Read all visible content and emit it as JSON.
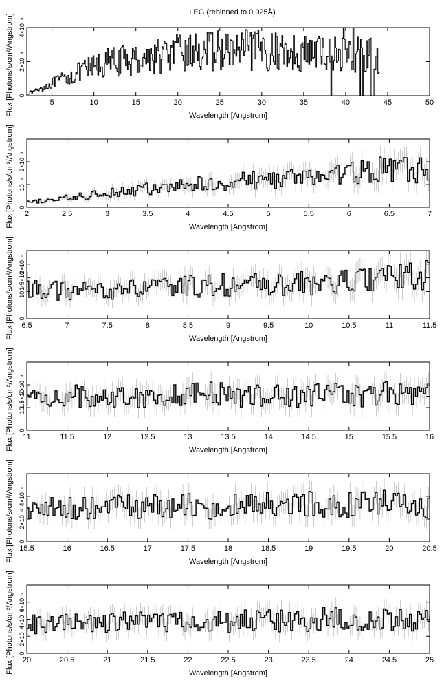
{
  "title": "LEG (rebinned to 0.025Å)",
  "chart_data": [
    {
      "type": "line",
      "xlabel": "Wavelength [Angstrom]",
      "ylabel": "Flux [Photons/s/cm²/Angstrom]",
      "xlim": [
        2,
        50
      ],
      "ylim": [
        0,
        0.0004
      ],
      "xticks": [
        5,
        10,
        15,
        20,
        25,
        30,
        35,
        40,
        45,
        50
      ],
      "xtick_labels": [
        "5",
        "10",
        "15",
        "20",
        "25",
        "30",
        "35",
        "40",
        "45",
        "50"
      ],
      "yticks": [
        0,
        0.0002,
        0.0004
      ],
      "ytick_labels": [
        "0",
        "2×10⁻⁴",
        "4×10⁻⁴"
      ],
      "series": [
        {
          "color": "#000000",
          "x": [
            2,
            3,
            4,
            5,
            6,
            7,
            8,
            9,
            10,
            11,
            12,
            13,
            14,
            15,
            16,
            17,
            18,
            19,
            20,
            21,
            22,
            23,
            24,
            25,
            26,
            27,
            28,
            29,
            30,
            31,
            32,
            33,
            34,
            35,
            36,
            37,
            38,
            39,
            40,
            41,
            42,
            43,
            44
          ],
          "y": [
            1e-05,
            3e-05,
            5e-05,
            7e-05,
            9e-05,
            0.00011,
            0.00013,
            0.00015,
            0.00017,
            0.00018,
            0.0002,
            0.0002,
            0.00021,
            0.00021,
            0.00022,
            0.00023,
            0.00024,
            0.00024,
            0.00025,
            0.00025,
            0.00026,
            0.00026,
            0.00026,
            0.00027,
            0.00026,
            0.00026,
            0.00027,
            0.00026,
            0.00027,
            0.00026,
            0.00026,
            0.00026,
            0.00025,
            0.00025,
            0.00025,
            0.00025,
            0.00025,
            0.00024,
            0.00024,
            0.00024,
            0.00024,
            0.00024,
            0.00023
          ]
        }
      ]
    },
    {
      "type": "line",
      "xlabel": "Wavelength [Angstrom]",
      "ylabel": "Flux [Photons/s/cm²/Angstrom]",
      "xlim": [
        2,
        7
      ],
      "ylim": [
        0,
        0.0003
      ],
      "xticks": [
        2,
        2.5,
        3,
        3.5,
        4,
        4.5,
        5,
        5.5,
        6,
        6.5,
        7
      ],
      "xtick_labels": [
        "2",
        "2.5",
        "3",
        "3.5",
        "4",
        "4.5",
        "5",
        "5.5",
        "6",
        "6.5",
        "7"
      ],
      "yticks": [
        0,
        0.0001,
        0.0002
      ],
      "ytick_labels": [
        "0",
        "10⁻⁴",
        "2×10⁻⁴"
      ],
      "series": [
        {
          "color": "#000000",
          "x": [
            2,
            2.25,
            2.5,
            2.75,
            3,
            3.25,
            3.5,
            3.75,
            4,
            4.25,
            4.5,
            4.75,
            5,
            5.25,
            5.5,
            5.75,
            6,
            6.25,
            6.5,
            6.75,
            7
          ],
          "y": [
            2e-05,
            3e-05,
            4e-05,
            5e-05,
            7e-05,
            7e-05,
            8e-05,
            8e-05,
            0.0001,
            0.0001,
            0.00011,
            0.00012,
            0.00012,
            0.00013,
            0.00013,
            0.00014,
            0.00015,
            0.00016,
            0.00017,
            0.00016,
            0.00017
          ]
        }
      ]
    },
    {
      "type": "line",
      "xlabel": "Wavelength [Angstrom]",
      "ylabel": "Flux [Photons/s/cm²/Angstrom]",
      "xlim": [
        6.5,
        11.5
      ],
      "ylim": [
        0,
        0.00025
      ],
      "xticks": [
        6.5,
        7,
        7.5,
        8,
        8.5,
        9,
        9.5,
        10,
        10.5,
        11,
        11.5
      ],
      "xtick_labels": [
        "6.5",
        "7",
        "7.5",
        "8",
        "8.5",
        "9",
        "9.5",
        "10",
        "10.5",
        "11",
        "11.5"
      ],
      "yticks": [
        0,
        0.0001,
        0.00015,
        0.0002
      ],
      "ytick_labels": [
        "0",
        "10⁻⁴",
        "1.5×10⁻⁴",
        "2×10⁻⁴"
      ],
      "series": [
        {
          "color": "#000000",
          "x": [
            6.5,
            6.75,
            7,
            7.25,
            7.5,
            7.75,
            8,
            8.25,
            8.5,
            8.75,
            9,
            9.25,
            9.5,
            9.75,
            10,
            10.25,
            10.5,
            10.75,
            11,
            11.25,
            11.5
          ],
          "y": [
            0.000115,
            0.000105,
            0.0001,
            0.0001,
            0.000105,
            0.00011,
            0.00011,
            0.000115,
            0.00012,
            0.00012,
            0.000125,
            0.000125,
            0.00012,
            0.000125,
            0.00013,
            0.00013,
            0.000135,
            0.000145,
            0.00015,
            0.000155,
            0.00016
          ]
        }
      ]
    },
    {
      "type": "line",
      "xlabel": "Wavelength [Angstrom]",
      "ylabel": "Flux [Photons/s/cm²/Angstrom]",
      "xlim": [
        11,
        16
      ],
      "ylim": [
        0,
        0.0003
      ],
      "xticks": [
        11,
        11.5,
        12,
        12.5,
        13,
        13.5,
        14,
        14.5,
        15,
        15.5,
        16
      ],
      "xtick_labels": [
        "11",
        "11.5",
        "12",
        "12.5",
        "13",
        "13.5",
        "14",
        "14.5",
        "15",
        "15.5",
        "16"
      ],
      "yticks": [
        0,
        0.0001,
        0.00015,
        0.0002
      ],
      "ytick_labels": [
        "0",
        "10⁻⁴",
        "1.5×10⁻⁴",
        "2×10⁻⁴"
      ],
      "series": [
        {
          "color": "#000000",
          "x": [
            11,
            11.25,
            11.5,
            11.75,
            12,
            12.25,
            12.5,
            12.75,
            13,
            13.25,
            13.5,
            13.75,
            14,
            14.25,
            14.5,
            14.75,
            15,
            15.25,
            15.5,
            15.75,
            16
          ],
          "y": [
            0.00014,
            0.000145,
            0.00015,
            0.00015,
            0.00015,
            0.00015,
            0.000155,
            0.00015,
            0.00016,
            0.00016,
            0.000155,
            0.000155,
            0.000155,
            0.00015,
            0.000155,
            0.00016,
            0.000155,
            0.00016,
            0.000165,
            0.00016,
            0.00016
          ]
        }
      ]
    },
    {
      "type": "line",
      "xlabel": "Wavelength [Angstrom]",
      "ylabel": "Flux [Photons/s/cm²/Angstrom]",
      "xlim": [
        15.5,
        20.5
      ],
      "ylim": [
        0,
        0.0006
      ],
      "xticks": [
        15.5,
        16,
        16.5,
        17,
        17.5,
        18,
        18.5,
        19,
        19.5,
        20,
        20.5
      ],
      "xtick_labels": [
        "15.5",
        "16",
        "16.5",
        "17",
        "17.5",
        "18",
        "18.5",
        "19",
        "19.5",
        "20",
        "20.5"
      ],
      "yticks": [
        0,
        0.0002,
        0.0004
      ],
      "ytick_labels": [
        "0",
        "2×10⁻⁴",
        "4×10⁻⁴"
      ],
      "series": [
        {
          "color": "#000000",
          "x": [
            15.5,
            15.75,
            16,
            16.25,
            16.5,
            16.75,
            17,
            17.25,
            17.5,
            17.75,
            18,
            18.25,
            18.5,
            18.75,
            19,
            19.25,
            19.5,
            19.75,
            20,
            20.25,
            20.5
          ],
          "y": [
            0.0003,
            0.00029,
            0.00029,
            0.0003,
            0.0003,
            0.00031,
            0.00031,
            0.00031,
            0.00032,
            0.0003,
            0.00031,
            0.00032,
            0.00032,
            0.00031,
            0.00034,
            0.00032,
            0.00032,
            0.00033,
            0.00034,
            0.00031,
            0.00032
          ]
        }
      ]
    },
    {
      "type": "line",
      "xlabel": "Wavelength [Angstrom]",
      "ylabel": "Flux [Photons/s/cm²/Angstrom]",
      "xlim": [
        20,
        25
      ],
      "ylim": [
        0,
        0.0008
      ],
      "xticks": [
        20,
        20.5,
        21,
        21.5,
        22,
        22.5,
        23,
        23.5,
        24,
        24.5,
        25
      ],
      "xtick_labels": [
        "20",
        "20.5",
        "21",
        "21.5",
        "22",
        "22.5",
        "23",
        "23.5",
        "24",
        "24.5",
        "25"
      ],
      "yticks": [
        0,
        0.0002,
        0.0004,
        0.0006
      ],
      "ytick_labels": [
        "0",
        "2×10⁻⁴",
        "4×10⁻⁴",
        "6×10⁻⁴"
      ],
      "series": [
        {
          "color": "#000000",
          "x": [
            20,
            20.25,
            20.5,
            20.75,
            21,
            21.25,
            21.5,
            21.75,
            22,
            22.25,
            22.5,
            22.75,
            23,
            23.25,
            23.5,
            23.75,
            24,
            24.25,
            24.5,
            24.75,
            25
          ],
          "y": [
            0.00033,
            0.00034,
            0.00035,
            0.00035,
            0.00036,
            0.00036,
            0.00037,
            0.00036,
            0.00037,
            0.00038,
            0.00037,
            0.00038,
            0.00038,
            0.00039,
            0.00038,
            0.00042,
            0.00039,
            0.00038,
            0.00039,
            0.00038,
            0.0004
          ]
        }
      ]
    }
  ]
}
